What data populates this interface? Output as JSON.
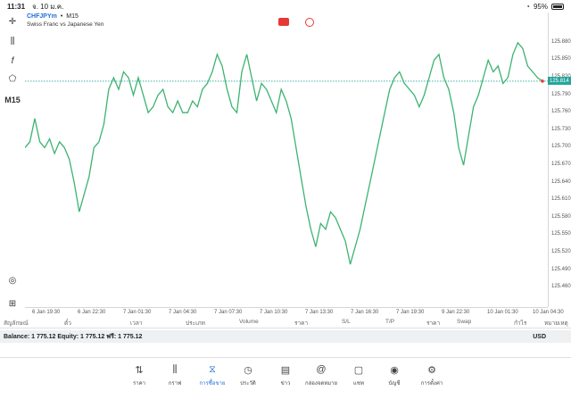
{
  "status_bar": {
    "time": "11:31",
    "date": "จ. 10 ม.ค.",
    "battery": "95%"
  },
  "chart": {
    "symbol": "CHFJPYm",
    "timeframe": "M15",
    "description": "Swiss Franc vs Japanese Yen",
    "current_price": "125.814",
    "line_color": "#3cb371",
    "accent": "#26a69a"
  },
  "toolbar": {
    "crosshair": "crosshair-icon",
    "chart_type": "candles-icon",
    "indicators": "f",
    "objects": "objects-icon",
    "timeframe_label": "M15",
    "bottom_icons": [
      "chart-check-icon",
      "add-window-icon"
    ]
  },
  "chart_data": {
    "type": "line",
    "x_labels": [
      "6 Jan 19:30",
      "6 Jan 22:30",
      "7 Jan 01:30",
      "7 Jan 04:30",
      "7 Jan 07:30",
      "7 Jan 10:30",
      "7 Jan 13:30",
      "7 Jan 16:30",
      "7 Jan 19:30",
      "9 Jan 22:30",
      "10 Jan 01:30",
      "10 Jan 04:30"
    ],
    "y_ticks": [
      "125.880",
      "125.850",
      "125.820",
      "125.790",
      "125.760",
      "125.730",
      "125.700",
      "125.670",
      "125.640",
      "125.610",
      "125.580",
      "125.550",
      "125.520",
      "125.490",
      "125.460"
    ],
    "ylim": [
      125.445,
      125.895
    ],
    "y": [
      125.7,
      125.71,
      125.75,
      125.71,
      125.7,
      125.715,
      125.69,
      125.71,
      125.7,
      125.68,
      125.64,
      125.59,
      125.62,
      125.65,
      125.7,
      125.71,
      125.74,
      125.8,
      125.82,
      125.8,
      125.83,
      125.82,
      125.79,
      125.82,
      125.79,
      125.76,
      125.77,
      125.79,
      125.8,
      125.77,
      125.76,
      125.78,
      125.76,
      125.76,
      125.78,
      125.77,
      125.8,
      125.81,
      125.83,
      125.86,
      125.84,
      125.8,
      125.77,
      125.76,
      125.83,
      125.86,
      125.82,
      125.78,
      125.81,
      125.8,
      125.78,
      125.76,
      125.8,
      125.78,
      125.75,
      125.7,
      125.65,
      125.6,
      125.56,
      125.53,
      125.57,
      125.56,
      125.59,
      125.58,
      125.56,
      125.54,
      125.5,
      125.53,
      125.56,
      125.6,
      125.64,
      125.68,
      125.72,
      125.76,
      125.8,
      125.82,
      125.83,
      125.81,
      125.8,
      125.79,
      125.77,
      125.79,
      125.82,
      125.85,
      125.86,
      125.82,
      125.8,
      125.76,
      125.7,
      125.67,
      125.72,
      125.77,
      125.79,
      125.82,
      125.85,
      125.83,
      125.84,
      125.81,
      125.82,
      125.86,
      125.88,
      125.87,
      125.84,
      125.83,
      125.82,
      125.814
    ],
    "price_line": 125.814,
    "grid": false
  },
  "columns": [
    "สัญลักษณ์",
    "ตั๋ว",
    "เวลา",
    "ประเภท",
    "Volume",
    "ราคา",
    "S/L",
    "T/P",
    "ราคา",
    "Swap",
    "กำไร",
    "หมายเหตุ"
  ],
  "balance": {
    "text": "Balance: 1 775.12 Equity: 1 775.12 ฟรี: 1 775.12",
    "currency": "USD"
  },
  "tabs": [
    {
      "label": "ราคา",
      "icon": "quotes-icon"
    },
    {
      "label": "กราฟ",
      "icon": "chart-icon"
    },
    {
      "label": "การซื้อขาย",
      "icon": "trade-icon"
    },
    {
      "label": "ประวัติ",
      "icon": "history-icon"
    },
    {
      "label": "ข่าว",
      "icon": "news-icon"
    },
    {
      "label": "กล่องจดหมาย",
      "icon": "mailbox-icon"
    },
    {
      "label": "แชท",
      "icon": "chat-icon"
    },
    {
      "label": "บัญชี",
      "icon": "account-icon"
    },
    {
      "label": "การตั้งค่า",
      "icon": "settings-icon"
    }
  ]
}
